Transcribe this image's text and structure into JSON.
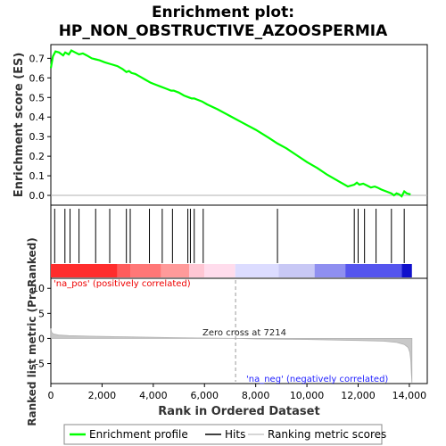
{
  "chart_data": {
    "type": "line",
    "title_line1": "Enrichment plot:",
    "title_line2": "HP_NON_OBSTRUCTIVE_AZOOSPERMIA",
    "top_panel": {
      "ylabel": "Enrichment score (ES)",
      "ylim": [
        -0.05,
        0.77
      ],
      "yticks": [
        "0.0",
        "0.1",
        "0.2",
        "0.3",
        "0.4",
        "0.5",
        "0.6",
        "0.7"
      ],
      "ytick_values": [
        0.0,
        0.1,
        0.2,
        0.3,
        0.4,
        0.5,
        0.6,
        0.7
      ],
      "series": [
        {
          "name": "Enrichment profile",
          "color": "#00ff00",
          "x": [
            0,
            80,
            180,
            320,
            480,
            560,
            700,
            800,
            950,
            1100,
            1250,
            1400,
            1600,
            1750,
            1900,
            2100,
            2350,
            2600,
            2800,
            2950,
            3050,
            3150,
            3300,
            3500,
            3700,
            3900,
            4100,
            4300,
            4500,
            4700,
            4800,
            5000,
            5200,
            5400,
            5500,
            5600,
            5700,
            5900,
            6100,
            6500,
            7000,
            7500,
            8000,
            8500,
            8850,
            9200,
            9600,
            10000,
            10400,
            10800,
            11200,
            11600,
            11850,
            11950,
            12050,
            12200,
            12350,
            12500,
            12650,
            12750,
            12900,
            13100,
            13300,
            13400,
            13500,
            13600,
            13700,
            13800,
            13900,
            14050
          ],
          "y": [
            0.65,
            0.71,
            0.735,
            0.73,
            0.715,
            0.73,
            0.72,
            0.74,
            0.73,
            0.72,
            0.725,
            0.715,
            0.7,
            0.695,
            0.69,
            0.68,
            0.67,
            0.66,
            0.645,
            0.63,
            0.635,
            0.625,
            0.62,
            0.605,
            0.59,
            0.575,
            0.565,
            0.555,
            0.545,
            0.535,
            0.535,
            0.525,
            0.51,
            0.5,
            0.495,
            0.495,
            0.49,
            0.48,
            0.465,
            0.44,
            0.405,
            0.37,
            0.335,
            0.295,
            0.265,
            0.24,
            0.205,
            0.17,
            0.14,
            0.105,
            0.075,
            0.045,
            0.055,
            0.065,
            0.055,
            0.06,
            0.05,
            0.04,
            0.045,
            0.04,
            0.03,
            0.02,
            0.01,
            0.0,
            0.01,
            0.005,
            -0.005,
            0.02,
            0.01,
            0.005
          ]
        }
      ]
    },
    "hits": [
      150,
      550,
      750,
      1100,
      1750,
      2300,
      2950,
      3100,
      3850,
      4350,
      4750,
      5350,
      5450,
      5600,
      5950,
      8850,
      11850,
      12000,
      12250,
      12700,
      13300,
      13800
    ],
    "xlabel": "Rank in Ordered Dataset",
    "xlim": [
      0,
      14700
    ],
    "xticks": [
      "0",
      "2,000",
      "4,000",
      "6,000",
      "8,000",
      "10,000",
      "12,000",
      "14,000"
    ],
    "xtick_values": [
      0,
      2000,
      4000,
      6000,
      8000,
      10000,
      12000,
      14000
    ],
    "dataset_size": 14100,
    "bottom_panel": {
      "ylabel": "Ranked list metric (PreRanked)",
      "ylim": [
        -9,
        12
      ],
      "yticks": [
        "10",
        "5",
        "0",
        "-5"
      ],
      "ytick_values": [
        10,
        5,
        0,
        -5
      ],
      "zero_cross_label": "Zero cross at 7214",
      "zero_cross_x": 7214,
      "positive_label": "'na_pos' (positively correlated)",
      "negative_label": "'na_neg' (negatively correlated)",
      "metric_x": [
        0,
        30,
        100,
        300,
        700,
        1500,
        3000,
        5000,
        6500,
        7214,
        8000,
        10000,
        12000,
        13000,
        13500,
        13800,
        13950,
        14020,
        14060,
        14080,
        14100
      ],
      "metric_y": [
        2.0,
        1.2,
        0.9,
        0.7,
        0.55,
        0.45,
        0.3,
        0.15,
        0.05,
        0.0,
        -0.1,
        -0.2,
        -0.4,
        -0.55,
        -0.8,
        -1.2,
        -1.8,
        -2.8,
        -4.5,
        -7.0,
        -8.8
      ]
    },
    "legend": [
      {
        "label": "Enrichment profile",
        "color": "#00ff00"
      },
      {
        "label": "Hits",
        "color": "#000000"
      },
      {
        "label": "Ranking metric scores",
        "color": "#c8c8c8"
      }
    ]
  }
}
